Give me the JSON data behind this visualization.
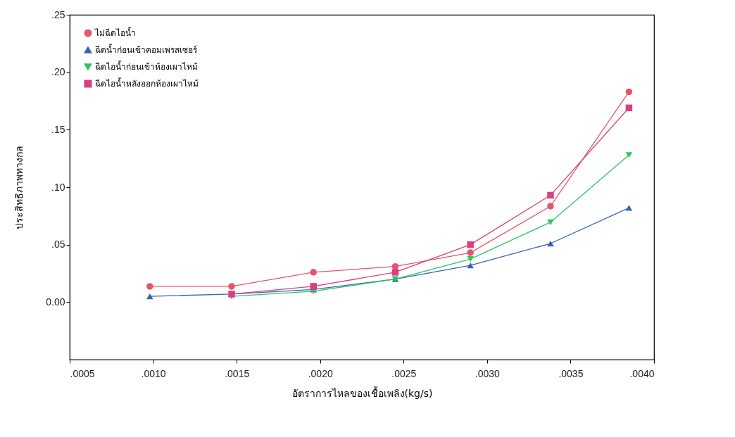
{
  "chart_data": {
    "type": "line",
    "xlabel": "อัตราการไหลของเชื้อเพลิง(kg/s)",
    "ylabel": "ประสิทธิภาพทางกล",
    "x": [
      0.00098,
      0.00147,
      0.00196,
      0.00245,
      0.0029,
      0.00338,
      0.00385
    ],
    "series": [
      {
        "name": "ไม่ฉีดไอน้ำ",
        "color": "#e5566b",
        "marker": "circle",
        "values": [
          0.0137,
          0.0137,
          0.026,
          0.031,
          0.043,
          0.0835,
          0.183
        ]
      },
      {
        "name": "ฉีดน้ำก่อนเข้าคอมเพรสเซอร์",
        "color": "#3a62b4",
        "marker": "triangle",
        "values": [
          0.005,
          0.007,
          0.011,
          0.02,
          0.032,
          0.051,
          0.082
        ]
      },
      {
        "name": "ฉีดไอน้ำก่อนเข้าห้องเผาไหม้",
        "color": "#2fc463",
        "marker": "triangle-down",
        "values": [
          null,
          0.005,
          0.0095,
          0.02,
          0.0375,
          0.0695,
          0.128
        ]
      },
      {
        "name": "ฉีดไอน้ำหลังออกห้องเผาไหม้",
        "color": "#d9407f",
        "marker": "square",
        "values": [
          null,
          0.007,
          0.0137,
          0.026,
          0.05,
          0.093,
          0.169
        ]
      }
    ],
    "xlim": [
      0.0005,
      0.004
    ],
    "xticks": [
      {
        "value": 0.0005,
        "label": ".0005"
      },
      {
        "value": 0.001,
        "label": ".0010"
      },
      {
        "value": 0.0015,
        "label": ".0015"
      },
      {
        "value": 0.002,
        "label": ".0020"
      },
      {
        "value": 0.0025,
        "label": ".0025"
      },
      {
        "value": 0.003,
        "label": ".0030"
      },
      {
        "value": 0.0035,
        "label": ".0035"
      },
      {
        "value": 0.004,
        "label": ".0040"
      }
    ],
    "ylim": [
      -0.05,
      0.25
    ],
    "yticks": [
      {
        "value": 0,
        "label": "0.00"
      },
      {
        "value": 0.05,
        "label": ".05"
      },
      {
        "value": 0.1,
        "label": ".10"
      },
      {
        "value": 0.15,
        "label": ".15"
      },
      {
        "value": 0.2,
        "label": ".20"
      },
      {
        "value": 0.25,
        "label": ".25"
      }
    ],
    "grid": false,
    "legend": "top left",
    "line_style": "solid"
  }
}
